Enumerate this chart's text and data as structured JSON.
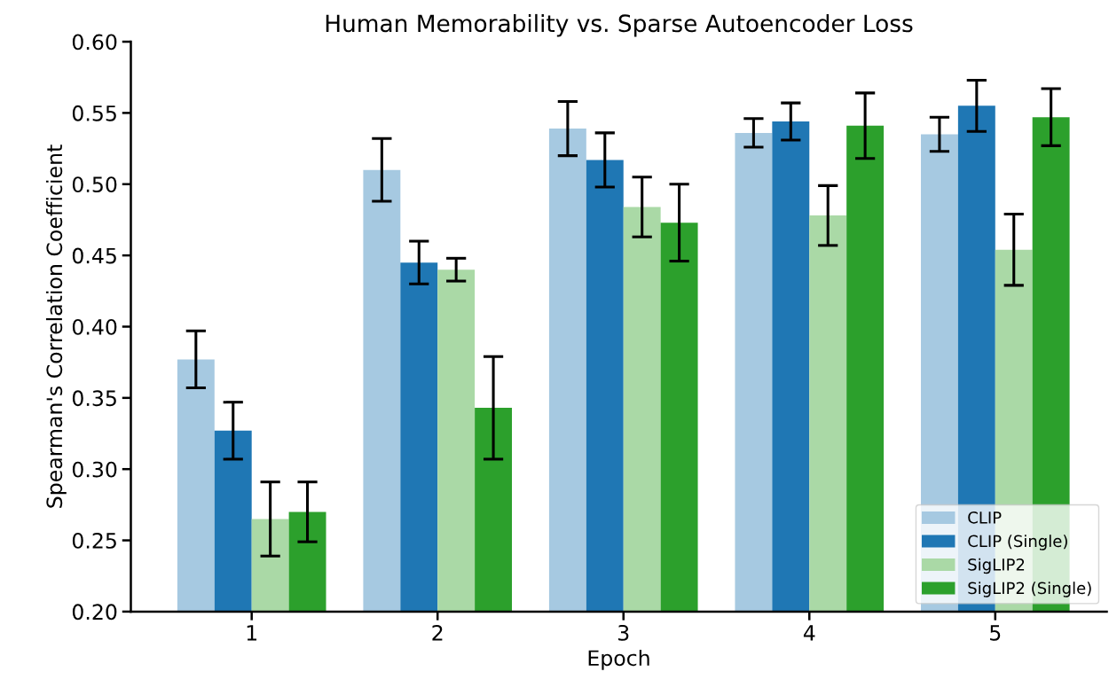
{
  "chart_data": {
    "type": "bar",
    "title": "Human Memorability vs. Sparse Autoencoder Loss",
    "xlabel": "Epoch",
    "ylabel": "Spearman's Correlation Coefficient",
    "categories": [
      "1",
      "2",
      "3",
      "4",
      "5"
    ],
    "series": [
      {
        "name": "CLIP",
        "color": "#a6c9e1",
        "values": [
          0.377,
          0.51,
          0.539,
          0.536,
          0.535
        ],
        "errors": [
          0.02,
          0.022,
          0.019,
          0.01,
          0.012
        ]
      },
      {
        "name": "CLIP (Single)",
        "color": "#1f77b4",
        "values": [
          0.327,
          0.445,
          0.517,
          0.544,
          0.555
        ],
        "errors": [
          0.02,
          0.015,
          0.019,
          0.013,
          0.018
        ]
      },
      {
        "name": "SigLIP2",
        "color": "#aad9a6",
        "values": [
          0.265,
          0.44,
          0.484,
          0.478,
          0.454
        ],
        "errors": [
          0.026,
          0.008,
          0.021,
          0.021,
          0.025
        ]
      },
      {
        "name": "SigLIP2 (Single)",
        "color": "#2ca02c",
        "values": [
          0.27,
          0.343,
          0.473,
          0.541,
          0.547
        ],
        "errors": [
          0.021,
          0.036,
          0.027,
          0.023,
          0.02
        ]
      }
    ],
    "ylim": [
      0.2,
      0.6
    ],
    "yticks": [
      {
        "value": 0.2,
        "label": "0.20"
      },
      {
        "value": 0.25,
        "label": "0.25"
      },
      {
        "value": 0.3,
        "label": "0.30"
      },
      {
        "value": 0.35,
        "label": "0.35"
      },
      {
        "value": 0.4,
        "label": "0.40"
      },
      {
        "value": 0.45,
        "label": "0.45"
      },
      {
        "value": 0.5,
        "label": "0.50"
      },
      {
        "value": 0.55,
        "label": "0.55"
      },
      {
        "value": 0.6,
        "label": "0.60"
      }
    ],
    "grid": false,
    "legend": "lower right"
  }
}
